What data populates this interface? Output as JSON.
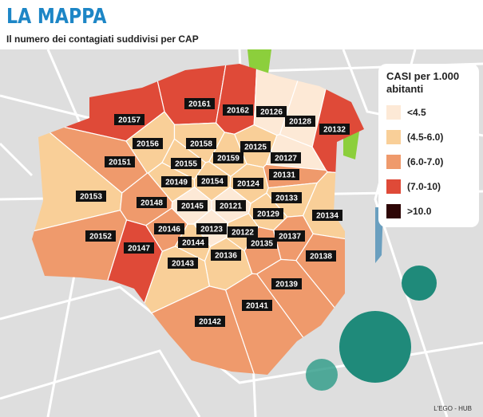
{
  "header": {
    "title": "LA MAPPA",
    "subtitle": "Il numero dei contagiati suddivisi per CAP"
  },
  "legend": {
    "title": "CASI per 1.000 abitanti",
    "items": [
      {
        "label": "<4.5",
        "color": "#fde9d6"
      },
      {
        "label": "(4.5-6.0)",
        "color": "#f9cf98"
      },
      {
        "label": "(6.0-7.0)",
        "color": "#ef9a6c"
      },
      {
        "label": "(7.0-10)",
        "color": "#df4a38"
      },
      {
        "label": ">10.0",
        "color": "#2e0606"
      }
    ]
  },
  "zones": [
    {
      "label": "20161",
      "class": 3
    },
    {
      "label": "20162",
      "class": 3
    },
    {
      "label": "20157",
      "class": 3
    },
    {
      "label": "20126",
      "class": 0
    },
    {
      "label": "20128",
      "class": 0
    },
    {
      "label": "20132",
      "class": 3
    },
    {
      "label": "20156",
      "class": 1
    },
    {
      "label": "20158",
      "class": 1
    },
    {
      "label": "20125",
      "class": 1
    },
    {
      "label": "20127",
      "class": 0
    },
    {
      "label": "20151",
      "class": 2
    },
    {
      "label": "20155",
      "class": 1
    },
    {
      "label": "20159",
      "class": 1
    },
    {
      "label": "20131",
      "class": 2
    },
    {
      "label": "20153",
      "class": 1
    },
    {
      "label": "20149",
      "class": 1
    },
    {
      "label": "20154",
      "class": 1
    },
    {
      "label": "20124",
      "class": 1
    },
    {
      "label": "20133",
      "class": 1
    },
    {
      "label": "20148",
      "class": 2
    },
    {
      "label": "20145",
      "class": 0
    },
    {
      "label": "20121",
      "class": 0
    },
    {
      "label": "20129",
      "class": 1
    },
    {
      "label": "20134",
      "class": 1
    },
    {
      "label": "20152",
      "class": 2
    },
    {
      "label": "20146",
      "class": 2
    },
    {
      "label": "20123",
      "class": 0
    },
    {
      "label": "20122",
      "class": 1
    },
    {
      "label": "20137",
      "class": 2
    },
    {
      "label": "20144",
      "class": 1
    },
    {
      "label": "20135",
      "class": 2
    },
    {
      "label": "20147",
      "class": 3
    },
    {
      "label": "20136",
      "class": 1
    },
    {
      "label": "20138",
      "class": 2
    },
    {
      "label": "20143",
      "class": 1
    },
    {
      "label": "20139",
      "class": 2
    },
    {
      "label": "20141",
      "class": 2
    },
    {
      "label": "20142",
      "class": 2
    }
  ],
  "credit": "L'EGO - HUB"
}
